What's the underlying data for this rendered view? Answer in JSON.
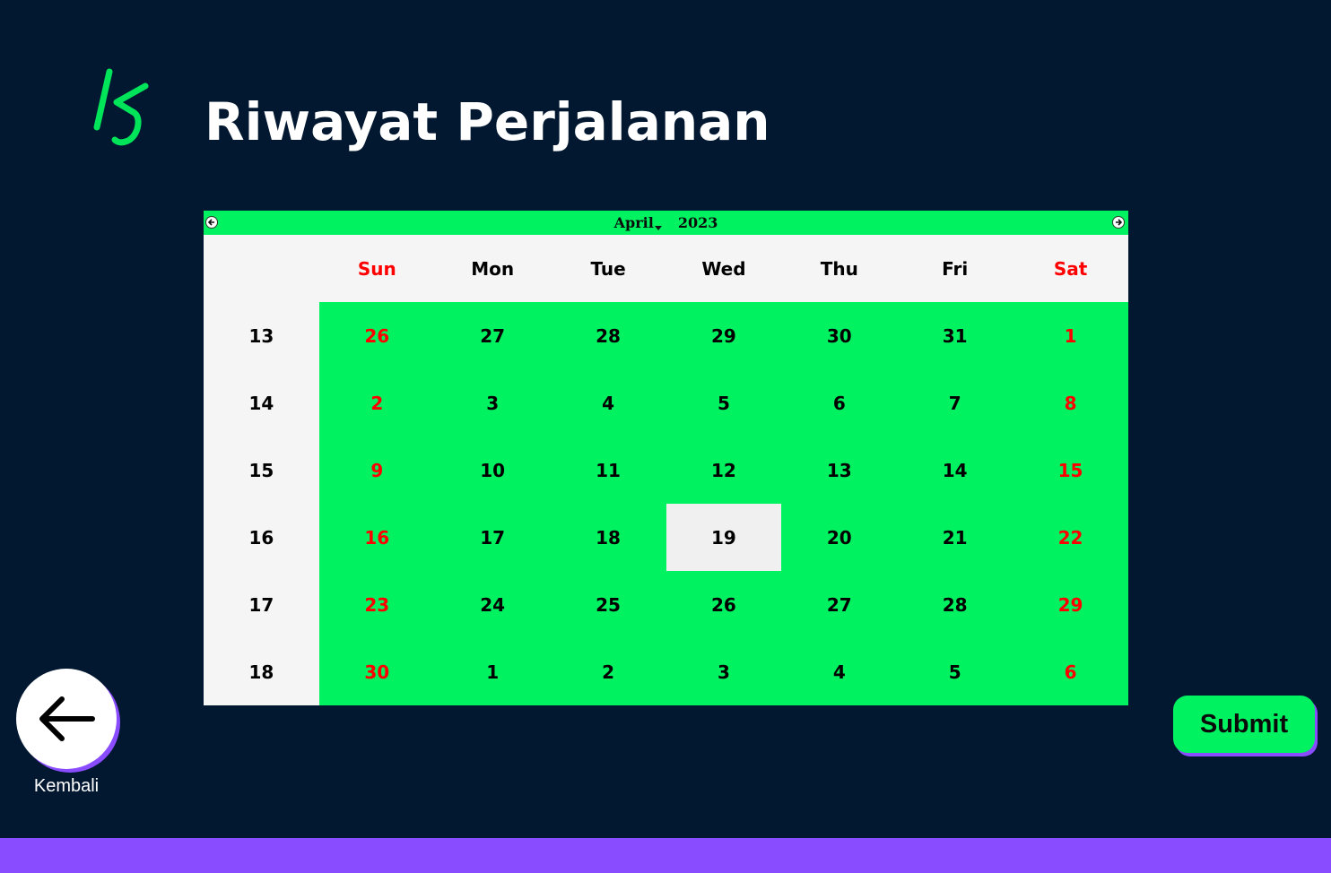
{
  "header": {
    "title": "Riwayat Perjalanan",
    "logo_icon": "ks-logo-icon"
  },
  "calendar": {
    "month": "April",
    "year": "2023",
    "weekday_headers": [
      "Sun",
      "Mon",
      "Tue",
      "Wed",
      "Thu",
      "Fri",
      "Sat"
    ],
    "weeks": [
      {
        "week": "13",
        "days": [
          "26",
          "27",
          "28",
          "29",
          "30",
          "31",
          "1"
        ]
      },
      {
        "week": "14",
        "days": [
          "2",
          "3",
          "4",
          "5",
          "6",
          "7",
          "8"
        ]
      },
      {
        "week": "15",
        "days": [
          "9",
          "10",
          "11",
          "12",
          "13",
          "14",
          "15"
        ]
      },
      {
        "week": "16",
        "days": [
          "16",
          "17",
          "18",
          "19",
          "20",
          "21",
          "22"
        ]
      },
      {
        "week": "17",
        "days": [
          "23",
          "24",
          "25",
          "26",
          "27",
          "28",
          "29"
        ]
      },
      {
        "week": "18",
        "days": [
          "30",
          "1",
          "2",
          "3",
          "4",
          "5",
          "6"
        ]
      }
    ],
    "selected_date": "19",
    "colors": {
      "accent": "#00f260",
      "weekend": "#ff0000",
      "header_bg": "#f5f5f5",
      "selected_bg": "#f0f0f0"
    }
  },
  "actions": {
    "back_label": "Kembali",
    "submit_label": "Submit"
  },
  "theme": {
    "background": "#021831",
    "footer": "#8a4cff"
  }
}
